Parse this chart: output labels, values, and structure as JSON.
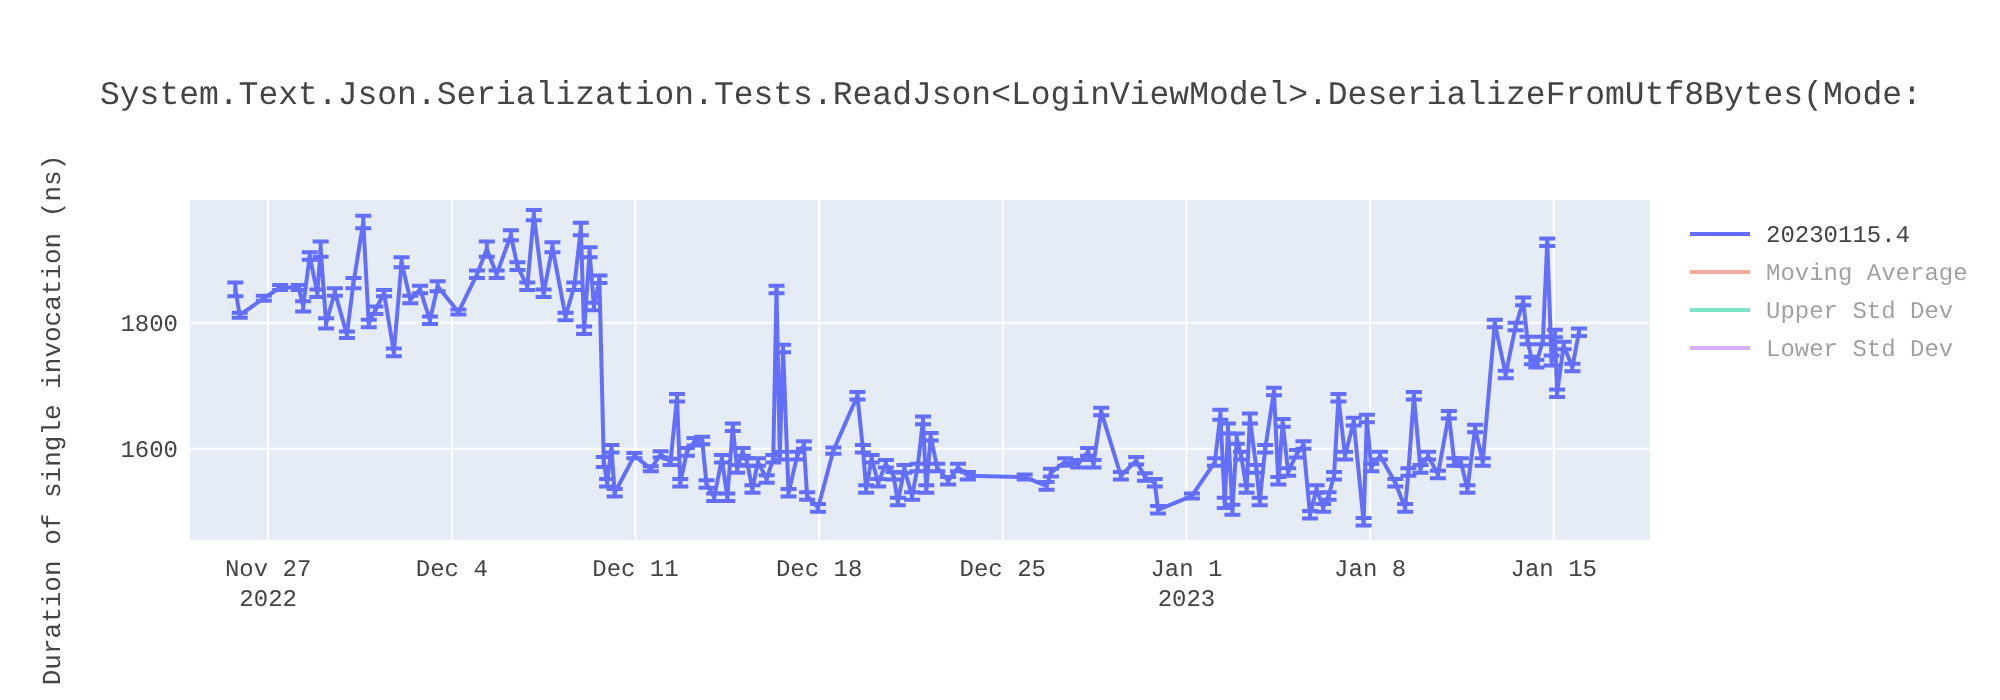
{
  "chart_data": {
    "type": "line",
    "title": "System.Text.Json.Serialization.Tests.ReadJson<LoginViewModel>.DeserializeFromUtf8Bytes(Mode:",
    "ylabel": "Duration of single invocation (ns)",
    "xlim": [
      "2022-11-24T00:30",
      "2023-01-18T16:00"
    ],
    "xticks": [
      {
        "value": "2022-11-27",
        "label": "Nov 27\n2022"
      },
      {
        "value": "2022-12-04",
        "label": "Dec 4"
      },
      {
        "value": "2022-12-11",
        "label": "Dec 11"
      },
      {
        "value": "2022-12-18",
        "label": "Dec 18"
      },
      {
        "value": "2022-12-25",
        "label": "Dec 25"
      },
      {
        "value": "2023-01-01",
        "label": "Jan 1\n2023"
      },
      {
        "value": "2023-01-08",
        "label": "Jan 8"
      },
      {
        "value": "2023-01-15",
        "label": "Jan 15"
      }
    ],
    "ylim": [
      1455,
      1995
    ],
    "yticks": [
      1600,
      1800
    ],
    "grid": true,
    "legend": "top right",
    "line_style": "solid",
    "series": [
      {
        "name": "20230115.4",
        "color": "#636efa",
        "x": [
          "2022-11-25T18:00",
          "2022-11-25T22:00",
          "2022-11-26T20:00",
          "2022-11-27T11:00",
          "2022-11-28T04:00",
          "2022-11-28T08:00",
          "2022-11-28T14:00",
          "2022-11-28T21:00",
          "2022-11-29T00:00",
          "2022-11-29T05:00",
          "2022-11-29T13:00",
          "2022-11-30T00:00",
          "2022-11-30T06:00",
          "2022-11-30T15:00",
          "2022-11-30T20:00",
          "2022-12-01T02:00",
          "2022-12-01T10:00",
          "2022-12-01T19:00",
          "2022-12-02T02:00",
          "2022-12-02T10:00",
          "2022-12-02T19:00",
          "2022-12-03T04:00",
          "2022-12-03T11:00",
          "2022-12-04T06:00",
          "2022-12-04T23:00",
          "2022-12-05T08:00",
          "2022-12-05T17:00",
          "2022-12-06T06:00",
          "2022-12-06T12:00",
          "2022-12-06T21:00",
          "2022-12-07T03:00",
          "2022-12-07T12:00",
          "2022-12-07T20:00",
          "2022-12-08T08:00",
          "2022-12-08T16:00",
          "2022-12-08T22:00",
          "2022-12-09T01:00",
          "2022-12-09T06:00",
          "2022-12-09T10:00",
          "2022-12-09T15:00",
          "2022-12-09T19:00",
          "2022-12-09T22:00",
          "2022-12-10T02:00",
          "2022-12-10T05:00",
          "2022-12-10T23:00",
          "2022-12-11T14:00",
          "2022-12-11T23:00",
          "2022-12-12T08:00",
          "2022-12-12T14:00",
          "2022-12-12T17:00",
          "2022-12-12T23:00",
          "2022-12-13T06:00",
          "2022-12-13T13:00",
          "2022-12-13T17:00",
          "2022-12-14T00:00",
          "2022-12-14T07:00",
          "2022-12-14T12:00",
          "2022-12-14T17:00",
          "2022-12-14T21:00",
          "2022-12-15T02:00",
          "2022-12-15T06:00",
          "2022-12-15T11:00",
          "2022-12-15T16:00",
          "2022-12-16T00:00",
          "2022-12-16T06:00",
          "2022-12-16T09:00",
          "2022-12-16T12:00",
          "2022-12-16T15:00",
          "2022-12-16T20:00",
          "2022-12-17T04:00",
          "2022-12-17T10:00",
          "2022-12-17T13:00",
          "2022-12-17T23:00",
          "2022-12-18T13:00",
          "2022-12-19T11:00",
          "2022-12-19T16:00",
          "2022-12-19T19:00",
          "2022-12-20T00:00",
          "2022-12-20T06:00",
          "2022-12-20T13:00",
          "2022-12-20T20:00",
          "2022-12-21T00:00",
          "2022-12-21T06:00",
          "2022-12-21T13:00",
          "2022-12-21T18:00",
          "2022-12-21T23:00",
          "2022-12-22T02:00",
          "2022-12-22T06:00",
          "2022-12-22T12:00",
          "2022-12-22T22:00",
          "2022-12-23T07:00",
          "2022-12-23T16:00",
          "2022-12-25T20:00",
          "2022-12-26T16:00",
          "2022-12-26T20:00",
          "2022-12-27T09:00",
          "2022-12-27T21:00",
          "2022-12-28T06:00",
          "2022-12-28T11:00",
          "2022-12-28T18:00",
          "2022-12-29T12:00",
          "2022-12-30T02:00",
          "2022-12-30T10:00",
          "2022-12-30T19:00",
          "2022-12-30T22:00",
          "2023-01-01T05:00",
          "2023-01-02T02:00",
          "2023-01-02T07:00",
          "2023-01-02T11:00",
          "2023-01-02T14:00",
          "2023-01-02T18:00",
          "2023-01-02T22:00",
          "2023-01-03T02:00",
          "2023-01-03T07:00",
          "2023-01-03T10:00",
          "2023-01-03T16:00",
          "2023-01-03T19:00",
          "2023-01-04T00:00",
          "2023-01-04T08:00",
          "2023-01-04T12:00",
          "2023-01-04T16:00",
          "2023-01-04T21:00",
          "2023-01-05T05:00",
          "2023-01-05T11:00",
          "2023-01-05T17:00",
          "2023-01-05T23:00",
          "2023-01-06T05:00",
          "2023-01-06T10:00",
          "2023-01-06T15:00",
          "2023-01-06T19:00",
          "2023-01-07T01:00",
          "2023-01-07T09:00",
          "2023-01-07T18:00",
          "2023-01-07T21:00",
          "2023-01-08T01:00",
          "2023-01-08T09:00",
          "2023-01-08T23:00",
          "2023-01-09T08:00",
          "2023-01-09T11:00",
          "2023-01-09T16:00",
          "2023-01-09T22:00",
          "2023-01-10T05:00",
          "2023-01-10T14:00",
          "2023-01-11T00:00",
          "2023-01-11T05:00",
          "2023-01-11T11:00",
          "2023-01-11T17:00",
          "2023-01-12T00:00",
          "2023-01-12T07:00",
          "2023-01-12T18:00",
          "2023-01-13T04:00",
          "2023-01-13T13:00",
          "2023-01-13T20:00",
          "2023-01-14T00:00",
          "2023-01-14T04:00",
          "2023-01-14T08:00",
          "2023-01-14T14:00",
          "2023-01-14T18:00",
          "2023-01-14T22:00",
          "2023-01-15T01:00",
          "2023-01-15T03:00",
          "2023-01-15T09:00",
          "2023-01-15T17:00",
          "2023-01-15T23:00"
        ],
        "values": [
          1853,
          1812,
          1839,
          1856,
          1856,
          1826,
          1906,
          1847,
          1917,
          1799,
          1849,
          1781,
          1863,
          1960,
          1799,
          1820,
          1847,
          1753,
          1896,
          1837,
          1853,
          1804,
          1858,
          1817,
          1877,
          1917,
          1877,
          1939,
          1890,
          1858,
          1971,
          1847,
          1920,
          1810,
          1858,
          1949,
          1788,
          1912,
          1826,
          1869,
          1579,
          1546,
          1600,
          1530,
          1589,
          1568,
          1591,
          1579,
          1681,
          1546,
          1595,
          1611,
          1613,
          1544,
          1523,
          1584,
          1523,
          1634,
          1568,
          1595,
          1579,
          1536,
          1579,
          1552,
          1584,
          1853,
          1589,
          1759,
          1530,
          1589,
          1606,
          1525,
          1506,
          1597,
          1684,
          1600,
          1536,
          1584,
          1546,
          1576,
          1557,
          1516,
          1568,
          1525,
          1570,
          1645,
          1536,
          1619,
          1570,
          1549,
          1570,
          1557,
          1555,
          1541,
          1562,
          1579,
          1576,
          1595,
          1576,
          1659,
          1557,
          1581,
          1555,
          1546,
          1503,
          1525,
          1579,
          1654,
          1514,
          1632,
          1503,
          1616,
          1589,
          1536,
          1648,
          1568,
          1516,
          1600,
          1691,
          1549,
          1641,
          1563,
          1592,
          1606,
          1495,
          1536,
          1506,
          1525,
          1557,
          1681,
          1589,
          1643,
          1484,
          1648,
          1570,
          1589,
          1546,
          1506,
          1563,
          1684,
          1568,
          1589,
          1559,
          1654,
          1579,
          1579,
          1536,
          1632,
          1579,
          1799,
          1718,
          1794,
          1834,
          1772,
          1740,
          1735,
          1772,
          1928,
          1740,
          1783,
          1688,
          1764,
          1729,
          1785
        ],
        "errors": [
          11,
          4,
          4,
          4,
          4,
          8,
          6,
          6,
          12,
          8,
          6,
          5,
          8,
          10,
          6,
          6,
          5,
          6,
          8,
          6,
          6,
          6,
          8,
          4,
          6,
          12,
          6,
          8,
          6,
          6,
          8,
          6,
          8,
          6,
          6,
          10,
          6,
          8,
          6,
          6,
          8,
          6,
          6,
          6,
          4,
          4,
          5,
          5,
          6,
          6,
          6,
          6,
          6,
          6,
          6,
          6,
          6,
          6,
          6,
          6,
          6,
          6,
          6,
          6,
          6,
          6,
          6,
          6,
          6,
          6,
          6,
          6,
          6,
          5,
          6,
          6,
          6,
          6,
          6,
          6,
          6,
          6,
          6,
          6,
          6,
          6,
          6,
          6,
          6,
          6,
          6,
          6,
          4,
          6,
          6,
          6,
          6,
          6,
          6,
          6,
          6,
          6,
          6,
          6,
          6,
          4,
          6,
          8,
          8,
          8,
          8,
          8,
          6,
          6,
          8,
          6,
          6,
          6,
          6,
          6,
          6,
          6,
          6,
          6,
          6,
          6,
          6,
          6,
          6,
          6,
          6,
          6,
          6,
          6,
          6,
          6,
          6,
          6,
          6,
          6,
          6,
          6,
          6,
          6,
          6,
          6,
          6,
          6,
          6,
          6,
          6,
          6,
          6,
          6,
          6,
          6,
          6,
          6,
          8,
          6,
          6,
          6,
          6,
          6
        ]
      },
      {
        "name": "Moving Average",
        "color": "#ef553b"
      },
      {
        "name": "Upper Std Dev",
        "color": "#00cc96"
      },
      {
        "name": "Lower Std Dev",
        "color": "#ab63fa"
      }
    ]
  }
}
